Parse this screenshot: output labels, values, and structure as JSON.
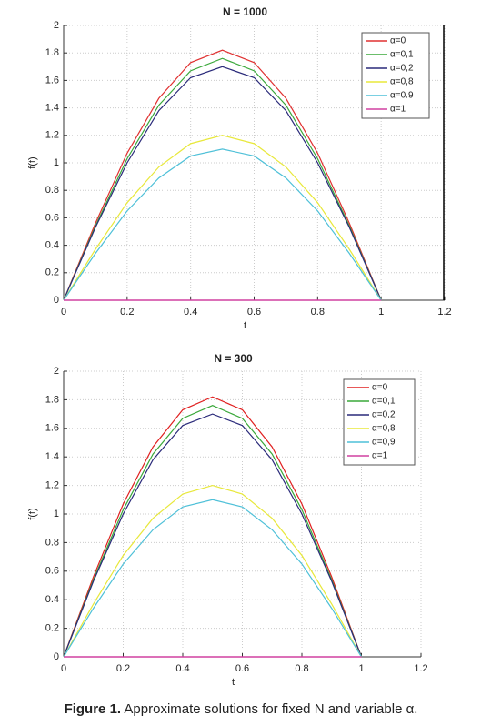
{
  "chart_data": [
    {
      "type": "line",
      "title": "N = 1000",
      "xlabel": "t",
      "ylabel": "f(t)",
      "x": [
        0,
        0.1,
        0.2,
        0.3,
        0.4,
        0.5,
        0.6,
        0.7,
        0.8,
        0.9,
        1
      ],
      "series": [
        {
          "name": "α=0",
          "color": "#e03030",
          "values": [
            0,
            0.56,
            1.07,
            1.47,
            1.73,
            1.82,
            1.73,
            1.47,
            1.07,
            0.56,
            0
          ]
        },
        {
          "name": "α=0,1",
          "color": "#3aa83a",
          "values": [
            0,
            0.54,
            1.03,
            1.42,
            1.67,
            1.76,
            1.67,
            1.42,
            1.03,
            0.54,
            0
          ]
        },
        {
          "name": "α=0,2",
          "color": "#2a2a7a",
          "values": [
            0,
            0.53,
            1.0,
            1.38,
            1.62,
            1.7,
            1.62,
            1.38,
            1.0,
            0.53,
            0
          ]
        },
        {
          "name": "α=0,8",
          "color": "#e8e83a",
          "values": [
            0,
            0.37,
            0.71,
            0.97,
            1.14,
            1.2,
            1.14,
            0.97,
            0.71,
            0.37,
            0
          ]
        },
        {
          "name": "α=0.9",
          "color": "#4ec0d8",
          "values": [
            0,
            0.34,
            0.65,
            0.89,
            1.05,
            1.1,
            1.05,
            0.89,
            0.65,
            0.34,
            0
          ]
        },
        {
          "name": "α=1",
          "color": "#d040a0",
          "values": [
            0,
            0,
            0,
            0,
            0,
            0,
            0,
            0,
            0,
            0,
            0
          ]
        }
      ],
      "xlim": [
        0,
        1.2
      ],
      "xticks": [
        0,
        0.2,
        0.4,
        0.6,
        0.8,
        1,
        1.2
      ],
      "ylim": [
        0,
        2
      ],
      "yticks": [
        0,
        0.2,
        0.4,
        0.6,
        0.8,
        1,
        1.2,
        1.4,
        1.6,
        1.8,
        2
      ],
      "grid": true,
      "legend": "upper right"
    },
    {
      "type": "line",
      "title": "N = 300",
      "xlabel": "t",
      "ylabel": "f(t)",
      "x": [
        0,
        0.1,
        0.2,
        0.3,
        0.4,
        0.5,
        0.6,
        0.7,
        0.8,
        0.9,
        1
      ],
      "series": [
        {
          "name": "α=0",
          "color": "#e02020",
          "values": [
            0,
            0.56,
            1.07,
            1.47,
            1.73,
            1.82,
            1.73,
            1.47,
            1.07,
            0.56,
            0
          ]
        },
        {
          "name": "α=0,1",
          "color": "#3aa83a",
          "values": [
            0,
            0.54,
            1.03,
            1.42,
            1.67,
            1.76,
            1.67,
            1.42,
            1.03,
            0.54,
            0
          ]
        },
        {
          "name": "α=0,2",
          "color": "#2a2a7a",
          "values": [
            0,
            0.53,
            1.0,
            1.38,
            1.62,
            1.7,
            1.62,
            1.38,
            1.0,
            0.53,
            0
          ]
        },
        {
          "name": "α=0,8",
          "color": "#e8e83a",
          "values": [
            0,
            0.37,
            0.71,
            0.97,
            1.14,
            1.2,
            1.14,
            0.97,
            0.71,
            0.37,
            0
          ]
        },
        {
          "name": "α=0,9",
          "color": "#4ec0d8",
          "values": [
            0,
            0.34,
            0.65,
            0.89,
            1.05,
            1.1,
            1.05,
            0.89,
            0.65,
            0.34,
            0
          ]
        },
        {
          "name": "α=1",
          "color": "#d040a0",
          "values": [
            0,
            0,
            0,
            0,
            0,
            0,
            0,
            0,
            0,
            0,
            0
          ]
        }
      ],
      "xlim": [
        0,
        1.2
      ],
      "xticks": [
        0,
        0.2,
        0.4,
        0.6,
        0.8,
        1,
        1.2
      ],
      "ylim": [
        0,
        2
      ],
      "yticks": [
        0,
        0.2,
        0.4,
        0.6,
        0.8,
        1,
        1.2,
        1.4,
        1.6,
        1.8,
        2
      ],
      "grid": true,
      "legend": "upper right"
    }
  ],
  "caption": {
    "label": "Figure 1.",
    "text": "Approximate solutions for fixed N and variable α."
  }
}
